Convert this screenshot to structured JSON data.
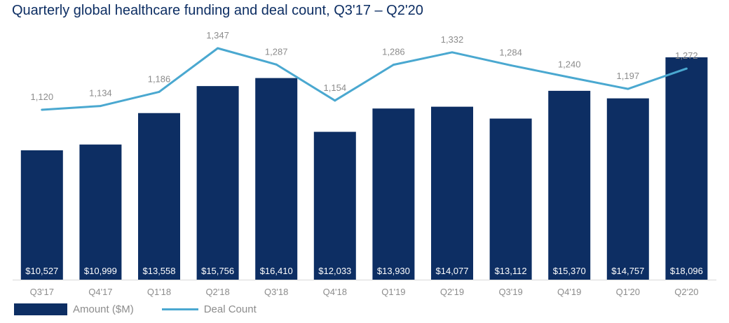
{
  "title": "Quarterly global healthcare funding and deal count, Q3'17 – Q2'20",
  "colors": {
    "bar": "#0d2e63",
    "line": "#4aa8d0",
    "axis": "#d9d9d9",
    "text": "#8c8c8c"
  },
  "legend": {
    "bar_label": "Amount ($M)",
    "line_label": "Deal Count"
  },
  "chart_data": {
    "type": "bar",
    "categories": [
      "Q3'17",
      "Q4'17",
      "Q1'18",
      "Q2'18",
      "Q3'18",
      "Q4'18",
      "Q1'19",
      "Q2'19",
      "Q3'19",
      "Q4'19",
      "Q1'20",
      "Q2'20"
    ],
    "series": [
      {
        "name": "Amount ($M)",
        "type": "bar",
        "values": [
          10527,
          10999,
          13558,
          15756,
          16410,
          12033,
          13930,
          14077,
          13112,
          15370,
          14757,
          18096
        ],
        "labels": [
          "$10,527",
          "$10,999",
          "$13,558",
          "$15,756",
          "$16,410",
          "$12,033",
          "$13,930",
          "$14,077",
          "$13,112",
          "$15,370",
          "$14,757",
          "$18,096"
        ]
      },
      {
        "name": "Deal Count",
        "type": "line",
        "values": [
          1120,
          1134,
          1186,
          1347,
          1287,
          1154,
          1286,
          1332,
          1284,
          1240,
          1197,
          1272
        ],
        "labels": [
          "1,120",
          "1,134",
          "1,186",
          "1,347",
          "1,287",
          "1,154",
          "1,286",
          "1,332",
          "1,284",
          "1,240",
          "1,197",
          "1,272"
        ]
      }
    ],
    "title": "Quarterly global healthcare funding and deal count, Q3'17 – Q2'20",
    "legend": "bottom-left",
    "grid": false
  }
}
